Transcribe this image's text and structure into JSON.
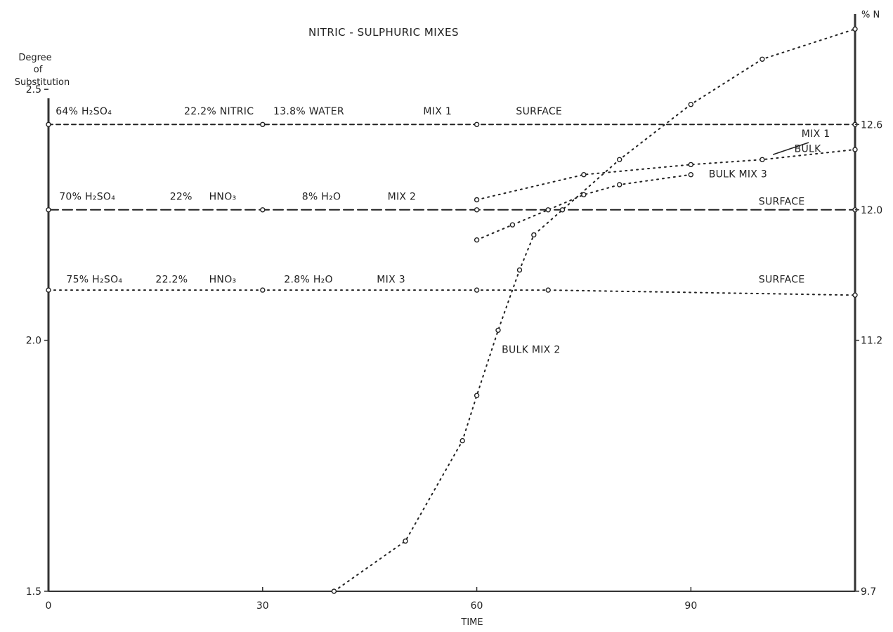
{
  "chart_data": {
    "type": "line",
    "title": "NITRIC - SULPHURIC MIXES",
    "xlabel": "TIME",
    "ylabel_left": [
      "Degree",
      "of",
      "Substitution"
    ],
    "ylabel_right": "% N",
    "xlim": [
      0,
      113
    ],
    "ylim": [
      1.5,
      2.65
    ],
    "grid": false,
    "x_ticks": [
      "0",
      "30",
      "60",
      "90"
    ],
    "y_ticks_left": [
      "1.5",
      "2.0",
      "2.5"
    ],
    "y_ticks_right": [
      "9.7",
      "11.2",
      "12.0",
      "12.6"
    ],
    "series": [
      {
        "name": "MIX 1 SURFACE",
        "style": "dashed",
        "x": [
          0,
          30,
          60,
          113
        ],
        "y": [
          2.43,
          2.43,
          2.43,
          2.43
        ]
      },
      {
        "name": "MIX 2 SURFACE",
        "style": "longdash",
        "x": [
          0,
          30,
          60,
          113
        ],
        "y": [
          2.26,
          2.26,
          2.26,
          2.26
        ]
      },
      {
        "name": "MIX 3 SURFACE",
        "style": "dotted",
        "x": [
          0,
          30,
          60,
          70,
          113
        ],
        "y": [
          2.1,
          2.1,
          2.1,
          2.1,
          2.09
        ]
      },
      {
        "name": "MIX 1 BULK",
        "style": "dotted",
        "x": [
          60,
          75,
          90,
          100,
          113
        ],
        "y": [
          2.28,
          2.33,
          2.35,
          2.36,
          2.38
        ]
      },
      {
        "name": "MIX 2 BULK",
        "style": "dotted",
        "x": [
          40,
          50,
          58,
          60,
          63,
          66,
          68,
          72,
          80,
          90,
          100,
          113
        ],
        "y": [
          1.5,
          1.6,
          1.8,
          1.89,
          2.02,
          2.14,
          2.21,
          2.26,
          2.36,
          2.47,
          2.56,
          2.62
        ]
      },
      {
        "name": "BULK MIX 3",
        "style": "dotted",
        "x": [
          60,
          65,
          70,
          75,
          80,
          90
        ],
        "y": [
          2.2,
          2.23,
          2.26,
          2.29,
          2.31,
          2.33
        ]
      }
    ],
    "annotations": [
      {
        "text": "64% H₂SO₄",
        "x": 1,
        "y": 2.45
      },
      {
        "text": "22.2% NITRIC",
        "x": 19,
        "y": 2.45
      },
      {
        "text": "13.8% WATER",
        "x": 31.5,
        "y": 2.45
      },
      {
        "text": "MIX 1",
        "x": 52.5,
        "y": 2.45
      },
      {
        "text": "SURFACE",
        "x": 65.5,
        "y": 2.45
      },
      {
        "text": "MIX 1",
        "x": 105.5,
        "y": 2.405
      },
      {
        "text": "BULK",
        "x": 104.5,
        "y": 2.375
      },
      {
        "text": "70% H₂SO₄",
        "x": 1.5,
        "y": 2.28
      },
      {
        "text": "22%",
        "x": 17,
        "y": 2.28
      },
      {
        "text": "HNO₃",
        "x": 22.5,
        "y": 2.28
      },
      {
        "text": "8% H₂O",
        "x": 35.5,
        "y": 2.28
      },
      {
        "text": "MIX 2",
        "x": 47.5,
        "y": 2.28
      },
      {
        "text": "BULK MIX 3",
        "x": 92.5,
        "y": 2.325
      },
      {
        "text": "SURFACE",
        "x": 99.5,
        "y": 2.27
      },
      {
        "text": "75% H₂SO₄",
        "x": 2.5,
        "y": 2.115
      },
      {
        "text": "22.2%",
        "x": 15,
        "y": 2.115
      },
      {
        "text": "HNO₃",
        "x": 22.5,
        "y": 2.115
      },
      {
        "text": "2.8% H₂O",
        "x": 33,
        "y": 2.115
      },
      {
        "text": "MIX 3",
        "x": 46,
        "y": 2.115
      },
      {
        "text": "SURFACE",
        "x": 99.5,
        "y": 2.115
      },
      {
        "text": "BULK MIX 2",
        "x": 63.5,
        "y": 1.975
      }
    ]
  }
}
